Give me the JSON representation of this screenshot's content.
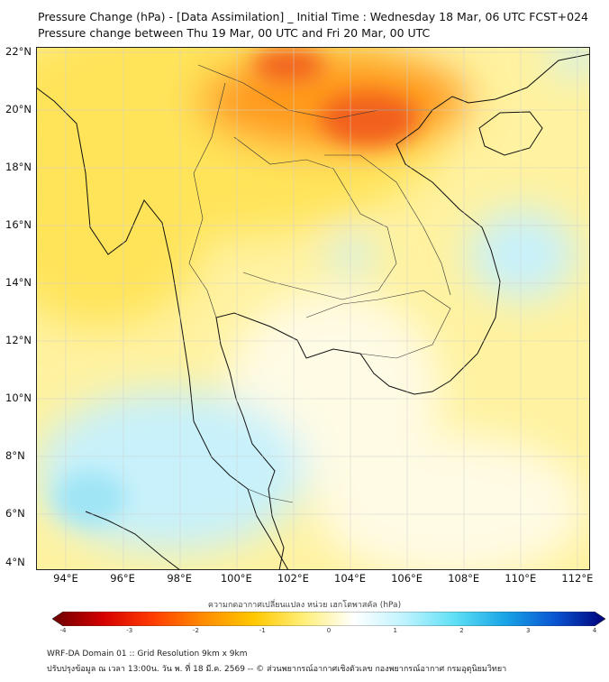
{
  "title_line1": "Pressure Change (hPa) - [Data Assimilation] _ Initial Time : Wednesday 18 Mar, 06 UTC FCST+024",
  "title_line2": "Pressure change between Thu 19 Mar, 00 UTC and Fri 20 Mar, 00 UTC",
  "lat_labels": [
    "22°N",
    "20°N",
    "18°N",
    "16°N",
    "14°N",
    "12°N",
    "10°N",
    "8°N",
    "6°N",
    "4°N"
  ],
  "lon_labels": [
    "94°E",
    "96°E",
    "98°E",
    "100°E",
    "102°E",
    "104°E",
    "106°E",
    "108°E",
    "110°E",
    "112°E"
  ],
  "colorbar": {
    "title": "ความกดอากาศเปลี่ยนแปลง หน่วย เฮกโตพาสคัล (hPa)",
    "ticks": [
      "-4",
      "-3",
      "-2",
      "-1",
      "0",
      "1",
      "2",
      "3",
      "4"
    ],
    "min": -4,
    "max": 4,
    "colors": [
      "#6b0000",
      "#d40000",
      "#ff3c00",
      "#ff8c00",
      "#ffc800",
      "#ffef7a",
      "#ffffff",
      "#bff3ff",
      "#5fe0f5",
      "#19a5e6",
      "#0a55d2",
      "#00007a"
    ]
  },
  "map_colors": {
    "ocean_yellow": "#fff2a0",
    "inland_yellow": "#ffe45a",
    "orange": "#ff9a1e",
    "deep_orange": "#f2611b",
    "pale": "#fffbe4",
    "cyan": "#c8f1fb",
    "cyan_deep": "#9fe5f6",
    "coast": "#111111",
    "border": "#333333"
  },
  "footer_line1": "WRF-DA Domain 01 :: Grid Resolution 9km x 9km",
  "footer_line2": "ปรับปรุงข้อมูล ณ เวลา 13:00น. วัน พ. ที่ 18 มี.ค. 2569 -- © ส่วนพยากรณ์อากาศเชิงตัวเลข กองพยากรณ์อากาศ กรมอุตุนิยมวิทยา"
}
